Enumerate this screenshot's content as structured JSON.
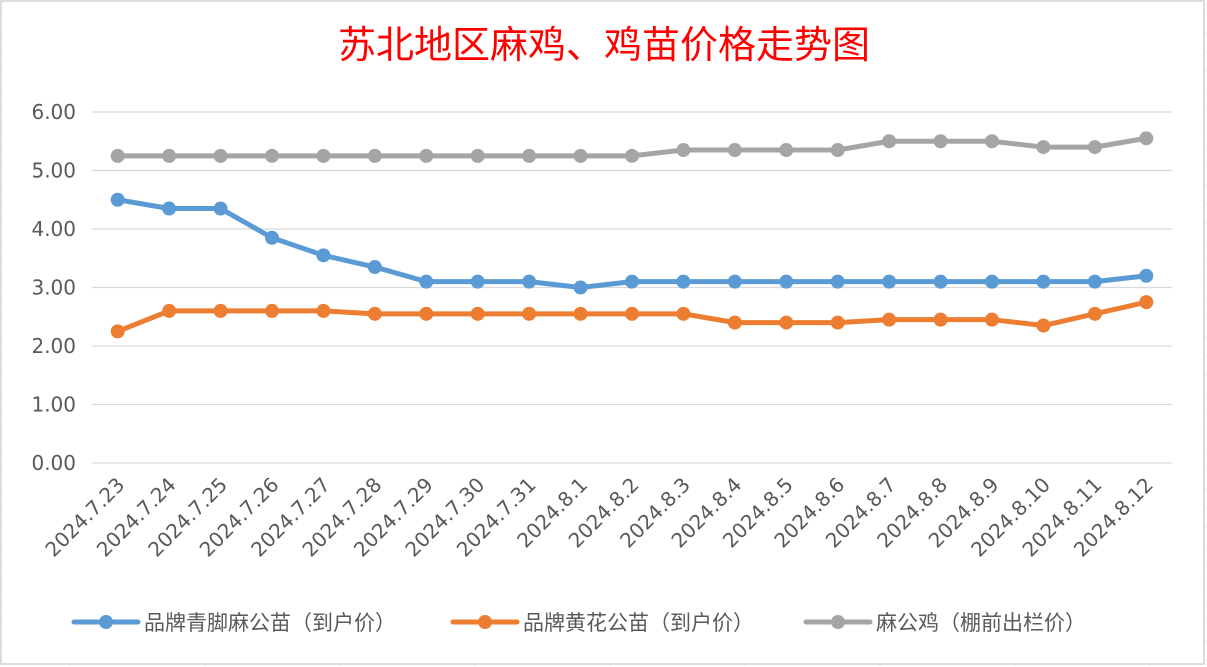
{
  "chart_data": {
    "type": "line",
    "title": "苏北地区麻鸡、鸡苗价格走势图",
    "categories": [
      "2024.7.23",
      "2024.7.24",
      "2024.7.25",
      "2024.7.26",
      "2024.7.27",
      "2024.7.28",
      "2024.7.29",
      "2024.7.30",
      "2024.7.31",
      "2024.8.1",
      "2024.8.2",
      "2024.8.3",
      "2024.8.4",
      "2024.8.5",
      "2024.8.6",
      "2024.8.7",
      "2024.8.8",
      "2024.8.9",
      "2024.8.10",
      "2024.8.11",
      "2024.8.12"
    ],
    "ylim": [
      0,
      6
    ],
    "yticks": [
      "0.00",
      "1.00",
      "2.00",
      "3.00",
      "4.00",
      "5.00",
      "6.00"
    ],
    "grid": true,
    "legend_position": "bottom",
    "series": [
      {
        "name": "品牌青脚麻公苗（到户价）",
        "color": "#5b9bd5",
        "values": [
          4.5,
          4.35,
          4.35,
          3.85,
          3.55,
          3.35,
          3.1,
          3.1,
          3.1,
          3.0,
          3.1,
          3.1,
          3.1,
          3.1,
          3.1,
          3.1,
          3.1,
          3.1,
          3.1,
          3.1,
          3.2
        ]
      },
      {
        "name": "品牌黄花公苗（到户价）",
        "color": "#ed7d31",
        "values": [
          2.25,
          2.6,
          2.6,
          2.6,
          2.6,
          2.55,
          2.55,
          2.55,
          2.55,
          2.55,
          2.55,
          2.55,
          2.4,
          2.4,
          2.4,
          2.45,
          2.45,
          2.45,
          2.35,
          2.55,
          2.75
        ]
      },
      {
        "name": "麻公鸡（棚前出栏价）",
        "color": "#a5a5a5",
        "values": [
          5.25,
          5.25,
          5.25,
          5.25,
          5.25,
          5.25,
          5.25,
          5.25,
          5.25,
          5.25,
          5.25,
          5.35,
          5.35,
          5.35,
          5.35,
          5.5,
          5.5,
          5.5,
          5.4,
          5.4,
          5.55
        ]
      }
    ]
  }
}
